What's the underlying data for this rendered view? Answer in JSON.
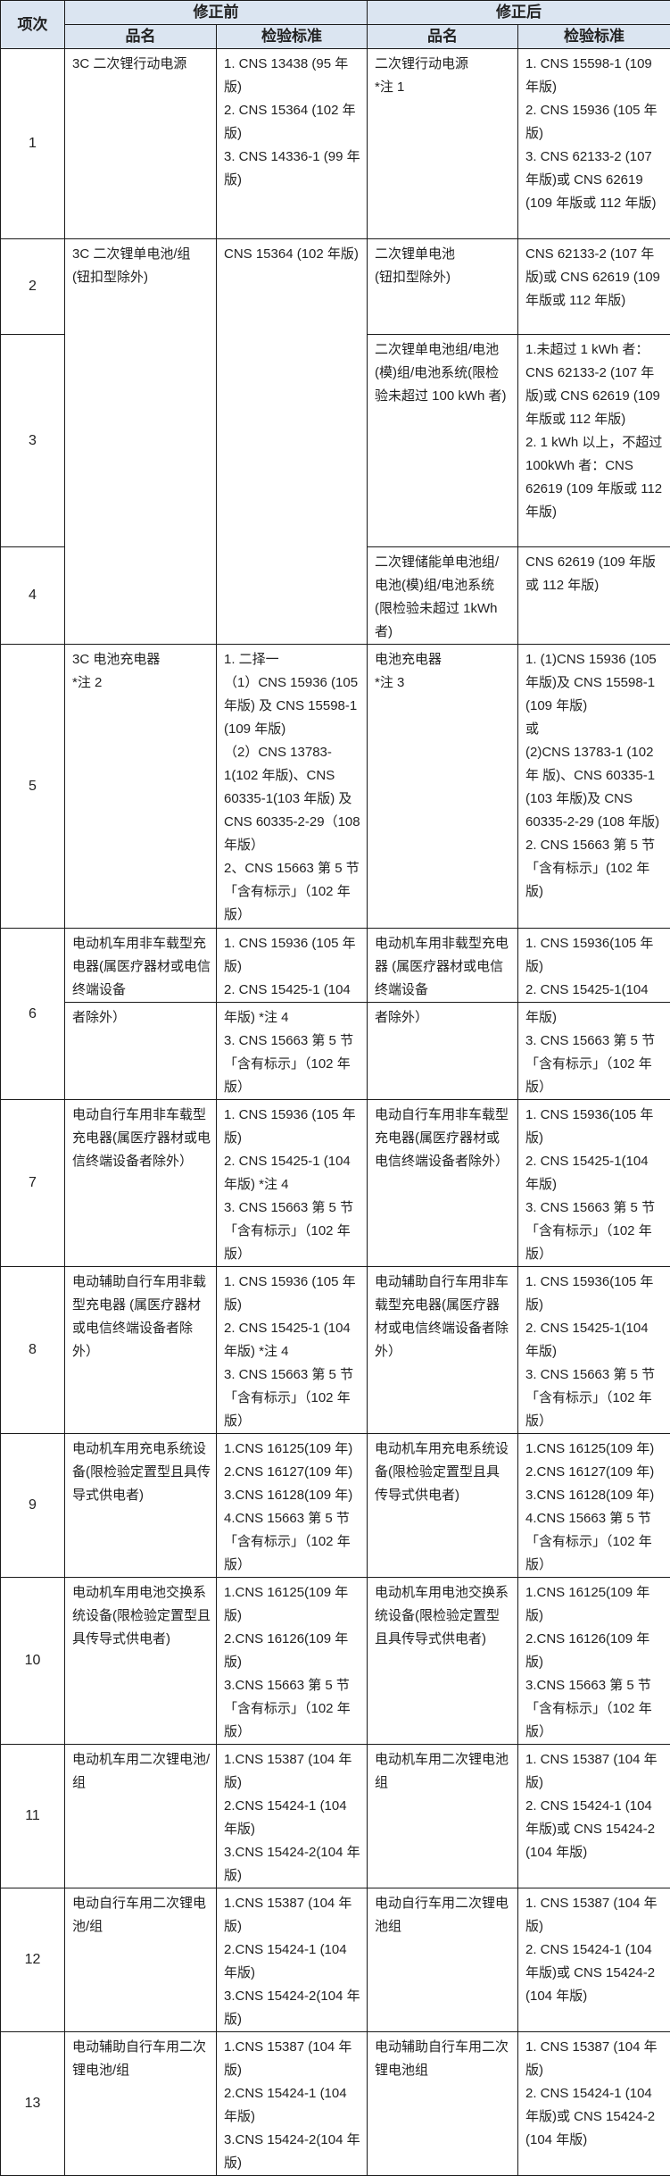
{
  "header": {
    "item": "项次",
    "before": "修正前",
    "after": "修正后",
    "name": "品名",
    "standard": "检验标准"
  },
  "colors": {
    "header_bg": "#dbe5f1",
    "border": "#1a1a1a"
  },
  "rows": [
    {
      "item": "1",
      "before_name": [
        "3C 二次锂行动电源"
      ],
      "before_std": [
        "1. CNS 13438 (95 年版)",
        "2. CNS 15364 (102 年版)",
        "3. CNS 14336-1 (99 年版)"
      ],
      "after_name": [
        "二次锂行动电源",
        "*注 1"
      ],
      "after_std": [
        "1. CNS 15598-1 (109 年版)",
        "2. CNS 15936 (105 年版)",
        "3. CNS 62133-2 (107 年版)或 CNS 62619 (109 年版或 112 年版)"
      ]
    },
    {
      "item": "2",
      "before_name": [
        "3C 二次锂单电池/组 (钮扣型除外)"
      ],
      "before_std": [
        "CNS 15364 (102 年版)"
      ],
      "after_name": [
        "二次锂单电池",
        "(钮扣型除外)"
      ],
      "after_std": [
        "CNS 62133-2 (107 年版)或 CNS 62619 (109 年版或 112 年版)"
      ]
    },
    {
      "item": "3",
      "after_name": [
        "二次锂单电池组/电池(模)组/电池系统(限检验未超过 100 kWh 者)"
      ],
      "after_std": [
        "1.未超过 1 kWh 者：CNS 62133-2 (107 年版)或 CNS 62619 (109 年版或 112 年版)",
        "2. 1 kWh 以上，不超过 100kWh 者：CNS 62619 (109 年版或 112 年版)"
      ]
    },
    {
      "item": "4",
      "after_name": [
        "二次锂储能单电池组/电池(模)组/电池系统(限检验未超过 1kWh 者)"
      ],
      "after_std": [
        "CNS 62619 (109 年版或 112 年版)"
      ]
    },
    {
      "item": "5",
      "before_name": [
        "3C 电池充电器",
        "*注 2"
      ],
      "before_std": [
        "1. 二择一",
        "（1）CNS 15936 (105 年版) 及 CNS 15598-1 (109 年版)",
        "（2）CNS 13783-1(102 年版)、CNS 60335-1(103 年版) 及 CNS 60335-2-29（108 年版）",
        "2、CNS 15663 第 5 节「含有标示」（102 年版）"
      ],
      "after_name": [
        "电池充电器",
        "*注 3"
      ],
      "after_std": [
        "1. (1)CNS 15936 (105 年版)及 CNS 15598-1 (109 年版)",
        "或",
        "(2)CNS 13783-1 (102 年 版)、CNS 60335-1 (103 年版)及 CNS 60335-2-29 (108 年版)",
        "2. CNS 15663 第 5 节「含有标示」(102 年版)"
      ]
    },
    {
      "item": "6",
      "before_name": [
        "电动机车用非车载型充电器(属医疗器材或电信终端设备"
      ],
      "before_std": [
        "1. CNS 15936 (105 年版)",
        "2. CNS 15425-1 (104"
      ],
      "after_name": [
        "电动机车用非载型充电器 (属医疗器材或电信终端设备"
      ],
      "after_std": [
        "1. CNS 15936(105 年版)",
        "2. CNS 15425-1(104"
      ]
    },
    {
      "item": "",
      "before_name": [
        "者除外）"
      ],
      "before_std": [
        "年版) *注 4",
        "3. CNS 15663 第 5 节「含有标示」（102 年版）"
      ],
      "after_name": [
        "者除外）"
      ],
      "after_std": [
        "年版)",
        "3. CNS 15663 第 5 节「含有标示」（102 年版）"
      ]
    },
    {
      "item": "7",
      "before_name": [
        "电动自行车用非车载型充电器(属医疗器材或电信终端设备者除外）"
      ],
      "before_std": [
        "1. CNS 15936 (105 年版)",
        "2. CNS 15425-1 (104 年版) *注 4",
        "3. CNS 15663 第 5 节「含有标示」（102 年版）"
      ],
      "after_name": [
        "电动自行车用非车载型充电器(属医疗器材或电信终端设备者除外）"
      ],
      "after_std": [
        "1. CNS 15936(105 年版)",
        "2. CNS 15425-1(104 年版)",
        "3. CNS 15663 第 5 节「含有标示」（102 年版）"
      ]
    },
    {
      "item": "8",
      "before_name": [
        "电动辅助自行车用非载型充电器 (属医疗器材或电信终端设备者除外）"
      ],
      "before_std": [
        "1. CNS 15936 (105 年版)",
        "2. CNS 15425-1 (104 年版) *注 4",
        "3. CNS 15663 第 5 节「含有标示」（102 年版）"
      ],
      "after_name": [
        "电动辅助自行车用非车载型充电器(属医疗器材或电信终端设备者除外）"
      ],
      "after_std": [
        "1. CNS 15936(105 年版)",
        "2. CNS 15425-1(104 年版)",
        "3. CNS 15663 第 5 节「含有标示」（102 年版）"
      ]
    },
    {
      "item": "9",
      "before_name": [
        "电动机车用充电系统设备(限检验定置型且具传导式供电者)"
      ],
      "before_std": [
        "1.CNS 16125(109 年)",
        "2.CNS 16127(109 年)",
        "3.CNS 16128(109 年)",
        "4.CNS 15663 第 5 节「含有标示」（102 年版）"
      ],
      "after_name": [
        "电动机车用充电系统设备(限检验定置型且具传导式供电者)"
      ],
      "after_std": [
        "1.CNS 16125(109 年)",
        "2.CNS 16127(109 年)",
        "3.CNS 16128(109 年)",
        "4.CNS 15663 第 5 节「含有标示」（102 年版）"
      ]
    },
    {
      "item": "10",
      "before_name": [
        "电动机车用电池交换系统设备(限检验定置型且具传导式供电者)"
      ],
      "before_std": [
        "1.CNS 16125(109 年版)",
        "2.CNS 16126(109 年版)",
        "3.CNS 15663 第 5 节「含有标示」（102 年版）"
      ],
      "after_name": [
        "电动机车用电池交换系统设备(限检验定置型且具传导式供电者)"
      ],
      "after_std": [
        "1.CNS 16125(109 年版)",
        "2.CNS 16126(109 年版)",
        "3.CNS 15663 第 5 节「含有标示」（102 年版）"
      ]
    },
    {
      "item": "11",
      "before_name": [
        "电动机车用二次锂电池/组"
      ],
      "before_std": [
        "1.CNS 15387 (104 年版)",
        "2.CNS 15424-1 (104 年版)",
        "3.CNS 15424-2(104 年版)"
      ],
      "after_name": [
        "电动机车用二次锂电池组"
      ],
      "after_std": [
        "1. CNS 15387 (104 年版)",
        "2. CNS 15424-1 (104 年版)或 CNS 15424-2 (104 年版)"
      ]
    },
    {
      "item": "12",
      "before_name": [
        "电动自行车用二次锂电池/组"
      ],
      "before_std": [
        "1.CNS 15387 (104 年版)",
        "2.CNS 15424-1 (104 年版)",
        "3.CNS 15424-2(104 年版)"
      ],
      "after_name": [
        "电动自行车用二次锂电池组"
      ],
      "after_std": [
        "1. CNS 15387 (104 年版)",
        "2. CNS 15424-1 (104 年版)或 CNS 15424-2 (104 年版)"
      ]
    },
    {
      "item": "13",
      "before_name": [
        "电动辅助自行车用二次锂电池/组"
      ],
      "before_std": [
        "1.CNS 15387 (104 年版)",
        "2.CNS 15424-1 (104 年版)",
        "3.CNS 15424-2(104 年版)"
      ],
      "after_name": [
        "电动辅助自行车用二次锂电池组"
      ],
      "after_std": [
        "1. CNS 15387 (104 年版)",
        "2. CNS 15424-1 (104 年版)或 CNS 15424-2 (104 年版)"
      ]
    }
  ]
}
